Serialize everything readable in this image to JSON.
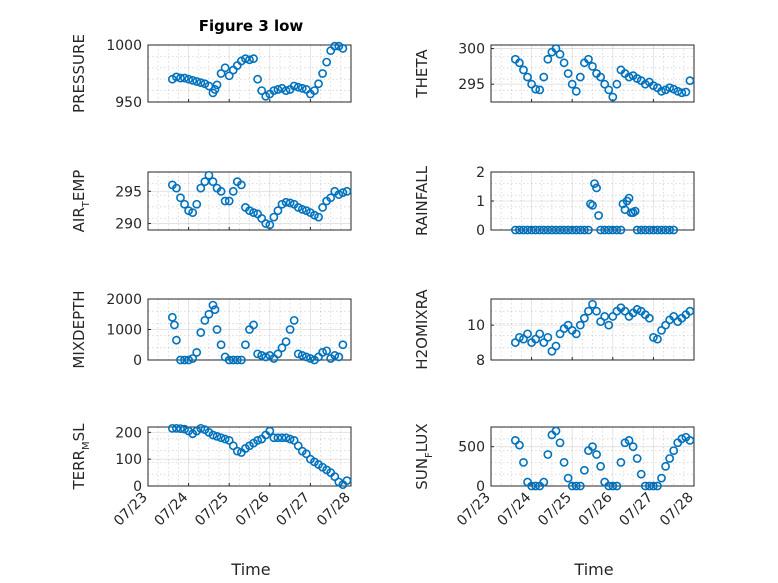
{
  "figure": {
    "title": "Figure 3 low",
    "marker_color": "#0072BD"
  },
  "chart_data": [
    {
      "type": "scatter",
      "id": "pressure",
      "ylabel_main": "PRESSURE",
      "ylabel_sub": "",
      "ylabel_tail": "",
      "xlim": [
        0,
        5
      ],
      "ylim": [
        950,
        1000
      ],
      "yticks": [
        950,
        1000
      ],
      "ytick_labels": [
        "950",
        "1000"
      ],
      "grid": true,
      "x": [
        0.6,
        0.7,
        0.8,
        0.9,
        1.0,
        1.1,
        1.2,
        1.3,
        1.4,
        1.5,
        1.6,
        1.65,
        1.7,
        1.8,
        1.9,
        2.0,
        2.1,
        2.2,
        2.3,
        2.4,
        2.5,
        2.6,
        2.7,
        2.8,
        2.9,
        3.0,
        3.1,
        3.2,
        3.3,
        3.4,
        3.5,
        3.6,
        3.7,
        3.8,
        3.9,
        4.0,
        4.1,
        4.2,
        4.3,
        4.4,
        4.5,
        4.6,
        4.7,
        4.8
      ],
      "y": [
        970,
        972,
        971,
        971,
        970,
        969,
        968,
        967,
        966,
        964,
        958,
        961,
        965,
        975,
        980,
        973,
        978,
        982,
        986,
        988,
        987,
        988,
        970,
        960,
        955,
        957,
        960,
        961,
        962,
        960,
        961,
        964,
        963,
        962,
        961,
        957,
        960,
        966,
        975,
        985,
        995,
        999,
        999,
        997
      ]
    },
    {
      "type": "scatter",
      "id": "theta",
      "ylabel_main": "THETA",
      "ylabel_sub": "",
      "ylabel_tail": "",
      "xlim": [
        0,
        5
      ],
      "ylim": [
        292.5,
        300.5
      ],
      "yticks": [
        295,
        300
      ],
      "ytick_labels": [
        "295",
        "300"
      ],
      "grid": true,
      "x": [
        0.6,
        0.7,
        0.8,
        0.9,
        1.0,
        1.1,
        1.2,
        1.3,
        1.4,
        1.5,
        1.6,
        1.7,
        1.8,
        1.9,
        2.0,
        2.1,
        2.2,
        2.3,
        2.4,
        2.5,
        2.6,
        2.7,
        2.8,
        2.9,
        3.0,
        3.1,
        3.2,
        3.3,
        3.4,
        3.5,
        3.6,
        3.7,
        3.8,
        3.9,
        4.0,
        4.1,
        4.2,
        4.3,
        4.4,
        4.5,
        4.6,
        4.7,
        4.8,
        4.9
      ],
      "y": [
        298.5,
        298,
        297,
        296,
        295,
        294.3,
        294.2,
        296,
        298.5,
        299.5,
        300,
        299.2,
        298,
        296.5,
        295,
        294,
        296,
        298,
        298.5,
        297.5,
        296.5,
        296,
        295,
        294.2,
        293.2,
        295,
        297,
        296.5,
        296,
        296.2,
        295.8,
        295.5,
        295,
        295.3,
        294.8,
        294.5,
        294,
        294.2,
        294.5,
        294.3,
        294,
        293.8,
        293.9,
        295.5
      ]
    },
    {
      "type": "scatter",
      "id": "air-temp",
      "ylabel_main": "AIR",
      "ylabel_sub": "T",
      "ylabel_tail": "EMP",
      "xlim": [
        0,
        5
      ],
      "ylim": [
        289,
        298
      ],
      "yticks": [
        290,
        295
      ],
      "ytick_labels": [
        "290",
        "295"
      ],
      "grid": true,
      "x": [
        0.6,
        0.7,
        0.8,
        0.9,
        1.0,
        1.1,
        1.2,
        1.3,
        1.4,
        1.5,
        1.6,
        1.7,
        1.8,
        1.9,
        2.0,
        2.1,
        2.2,
        2.3,
        2.4,
        2.5,
        2.6,
        2.7,
        2.8,
        2.9,
        3.0,
        3.1,
        3.2,
        3.3,
        3.4,
        3.5,
        3.6,
        3.7,
        3.8,
        3.9,
        4.0,
        4.1,
        4.2,
        4.3,
        4.4,
        4.5,
        4.6,
        4.7,
        4.8,
        4.9
      ],
      "y": [
        296,
        295.5,
        294,
        293,
        292,
        291.7,
        293,
        295.5,
        296.5,
        297.5,
        296.5,
        295.5,
        295,
        293.5,
        293.5,
        295,
        296.5,
        296,
        292.5,
        292,
        291.7,
        291.5,
        290.8,
        290,
        289.8,
        291,
        292,
        293,
        293.3,
        293.2,
        293,
        292.5,
        292.2,
        292,
        291.7,
        291.3,
        291,
        292.5,
        293.5,
        294,
        295,
        294.5,
        294.8,
        295
      ]
    },
    {
      "type": "scatter",
      "id": "rainfall",
      "ylabel_main": "RAINFALL",
      "ylabel_sub": "",
      "ylabel_tail": "",
      "xlim": [
        0,
        5
      ],
      "ylim": [
        0,
        2
      ],
      "yticks": [
        0,
        1,
        2
      ],
      "ytick_labels": [
        "0",
        "1",
        "2"
      ],
      "grid": true,
      "x": [
        0.6,
        0.7,
        0.8,
        0.9,
        1.0,
        1.1,
        1.2,
        1.3,
        1.4,
        1.5,
        1.6,
        1.7,
        1.8,
        1.9,
        2.0,
        2.1,
        2.2,
        2.3,
        2.4,
        2.45,
        2.5,
        2.55,
        2.6,
        2.65,
        2.7,
        2.8,
        2.9,
        3.0,
        3.1,
        3.2,
        3.25,
        3.3,
        3.35,
        3.4,
        3.45,
        3.5,
        3.55,
        3.6,
        3.7,
        3.8,
        3.9,
        4.0,
        4.1,
        4.2,
        4.3,
        4.4,
        4.5
      ],
      "y": [
        0,
        0,
        0,
        0,
        0,
        0,
        0,
        0,
        0,
        0,
        0,
        0,
        0,
        0,
        0,
        0,
        0,
        0,
        0,
        0.9,
        0.85,
        1.6,
        1.45,
        0.5,
        0,
        0,
        0,
        0,
        0,
        0,
        0.9,
        0.7,
        1,
        1.1,
        0.6,
        0.6,
        0.65,
        0,
        0,
        0,
        0,
        0,
        0,
        0,
        0,
        0,
        0
      ]
    },
    {
      "type": "scatter",
      "id": "mixdepth",
      "ylabel_main": "MIXDEPTH",
      "ylabel_sub": "",
      "ylabel_tail": "",
      "xlim": [
        0,
        5
      ],
      "ylim": [
        0,
        2000
      ],
      "yticks": [
        0,
        1000,
        2000
      ],
      "ytick_labels": [
        "0",
        "1000",
        "2000"
      ],
      "grid": true,
      "x": [
        0.6,
        0.65,
        0.7,
        0.8,
        0.9,
        1.0,
        1.1,
        1.2,
        1.3,
        1.4,
        1.5,
        1.6,
        1.65,
        1.7,
        1.8,
        1.9,
        2.0,
        2.1,
        2.2,
        2.3,
        2.4,
        2.5,
        2.6,
        2.7,
        2.8,
        2.9,
        3.0,
        3.1,
        3.2,
        3.3,
        3.4,
        3.5,
        3.6,
        3.7,
        3.8,
        3.9,
        4.0,
        4.1,
        4.2,
        4.3,
        4.4,
        4.5,
        4.6,
        4.7,
        4.8
      ],
      "y": [
        1400,
        1150,
        650,
        0,
        0,
        0,
        50,
        250,
        900,
        1300,
        1500,
        1800,
        1650,
        1000,
        500,
        100,
        0,
        0,
        0,
        0,
        500,
        1000,
        1150,
        200,
        150,
        100,
        150,
        50,
        200,
        400,
        600,
        1000,
        1300,
        200,
        150,
        100,
        50,
        0,
        100,
        250,
        300,
        50,
        150,
        100,
        500
      ]
    },
    {
      "type": "scatter",
      "id": "h2omixra",
      "ylabel_main": "H2OMIXRA",
      "ylabel_sub": "",
      "ylabel_tail": "",
      "xlim": [
        0,
        5
      ],
      "ylim": [
        8,
        11.5
      ],
      "yticks": [
        8,
        10
      ],
      "ytick_labels": [
        "8",
        "10"
      ],
      "grid": true,
      "x": [
        0.6,
        0.7,
        0.8,
        0.9,
        1.0,
        1.1,
        1.2,
        1.3,
        1.4,
        1.5,
        1.6,
        1.7,
        1.8,
        1.9,
        2.0,
        2.1,
        2.2,
        2.3,
        2.4,
        2.5,
        2.6,
        2.7,
        2.8,
        2.9,
        3.0,
        3.1,
        3.2,
        3.3,
        3.4,
        3.5,
        3.6,
        3.7,
        3.8,
        3.9,
        4.0,
        4.1,
        4.2,
        4.3,
        4.4,
        4.5,
        4.6,
        4.7,
        4.8,
        4.9
      ],
      "y": [
        9,
        9.3,
        9.2,
        9.5,
        9,
        9.2,
        9.5,
        9,
        9.3,
        8.5,
        8.8,
        9.5,
        9.8,
        10,
        9.7,
        9.5,
        10,
        10.4,
        10.8,
        11.2,
        10.8,
        10.2,
        10.5,
        10,
        10.5,
        10.8,
        11,
        10.8,
        10.5,
        10.7,
        10.9,
        10.8,
        10.6,
        10.4,
        9.3,
        9.2,
        9.7,
        10,
        10.3,
        10.5,
        10.2,
        10.4,
        10.6,
        10.8
      ]
    },
    {
      "type": "scatter",
      "id": "terr-msl",
      "ylabel_main": "TERR",
      "ylabel_sub": "M",
      "ylabel_tail": "SL",
      "xlim": [
        0,
        5
      ],
      "ylim": [
        0,
        220
      ],
      "yticks": [
        0,
        100,
        200
      ],
      "ytick_labels": [
        "0",
        "100",
        "200"
      ],
      "grid": true,
      "x": [
        0.6,
        0.7,
        0.8,
        0.9,
        1.0,
        1.1,
        1.2,
        1.3,
        1.4,
        1.5,
        1.6,
        1.7,
        1.8,
        1.9,
        2.0,
        2.1,
        2.2,
        2.3,
        2.4,
        2.5,
        2.6,
        2.7,
        2.8,
        2.9,
        3.0,
        3.1,
        3.2,
        3.3,
        3.4,
        3.5,
        3.6,
        3.7,
        3.8,
        3.9,
        4.0,
        4.1,
        4.2,
        4.3,
        4.4,
        4.5,
        4.6,
        4.7,
        4.8,
        4.9
      ],
      "y": [
        215,
        215,
        214,
        212,
        205,
        195,
        205,
        215,
        210,
        200,
        190,
        185,
        180,
        175,
        170,
        150,
        130,
        125,
        140,
        150,
        160,
        170,
        175,
        190,
        205,
        180,
        180,
        180,
        180,
        175,
        170,
        150,
        130,
        120,
        100,
        90,
        80,
        70,
        60,
        50,
        35,
        15,
        5,
        20
      ]
    },
    {
      "type": "scatter",
      "id": "sun-flux",
      "ylabel_main": "SUN",
      "ylabel_sub": "F",
      "ylabel_tail": "LUX",
      "xlim": [
        0,
        5
      ],
      "ylim": [
        0,
        750
      ],
      "yticks": [
        0,
        500
      ],
      "ytick_labels": [
        "0",
        "500"
      ],
      "grid": true,
      "x": [
        0.6,
        0.7,
        0.8,
        0.9,
        1.0,
        1.1,
        1.2,
        1.3,
        1.4,
        1.5,
        1.6,
        1.7,
        1.8,
        1.9,
        2.0,
        2.1,
        2.2,
        2.3,
        2.4,
        2.5,
        2.6,
        2.7,
        2.8,
        2.9,
        3.0,
        3.1,
        3.2,
        3.3,
        3.4,
        3.5,
        3.6,
        3.7,
        3.8,
        3.9,
        4.0,
        4.1,
        4.2,
        4.3,
        4.4,
        4.5,
        4.6,
        4.7,
        4.8,
        4.9
      ],
      "y": [
        580,
        520,
        300,
        50,
        0,
        0,
        0,
        50,
        400,
        650,
        700,
        550,
        300,
        100,
        0,
        0,
        0,
        200,
        450,
        500,
        400,
        250,
        50,
        0,
        0,
        0,
        300,
        550,
        580,
        500,
        350,
        150,
        0,
        0,
        0,
        0,
        100,
        250,
        350,
        450,
        550,
        600,
        620,
        580
      ]
    }
  ],
  "x_axis": {
    "tick_labels": [
      "07/23",
      "07/24",
      "07/25",
      "07/26",
      "07/27",
      "07/28"
    ],
    "label": "Time"
  }
}
